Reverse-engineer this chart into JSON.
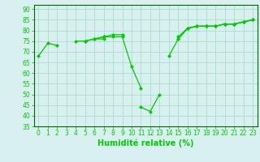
{
  "x": [
    0,
    1,
    2,
    3,
    4,
    5,
    6,
    7,
    8,
    9,
    10,
    11,
    12,
    13,
    14,
    15,
    16,
    17,
    18,
    19,
    20,
    21,
    22,
    23
  ],
  "line1": [
    68,
    74,
    73,
    null,
    75,
    75,
    76,
    76,
    null,
    null,
    null,
    44,
    42,
    50,
    null,
    76,
    81,
    82,
    82,
    82,
    83,
    83,
    84,
    85
  ],
  "line2": [
    null,
    null,
    null,
    null,
    null,
    75,
    76,
    77,
    77,
    77,
    63,
    53,
    null,
    null,
    68,
    76,
    81,
    82,
    82,
    82,
    83,
    83,
    84,
    85
  ],
  "line3": [
    null,
    null,
    null,
    null,
    null,
    null,
    76,
    77,
    78,
    78,
    null,
    null,
    null,
    null,
    null,
    77,
    81,
    82,
    82,
    82,
    83,
    83,
    84,
    85
  ],
  "background_color": "#d8f0f0",
  "grid_color": "#aaddcc",
  "line_color": "#00cc00",
  "ylim": [
    35,
    92
  ],
  "xlim": [
    -0.5,
    23.5
  ],
  "yticks": [
    35,
    40,
    45,
    50,
    55,
    60,
    65,
    70,
    75,
    80,
    85,
    90
  ],
  "xticks": [
    0,
    1,
    2,
    3,
    4,
    5,
    6,
    7,
    8,
    9,
    10,
    11,
    12,
    13,
    14,
    15,
    16,
    17,
    18,
    19,
    20,
    21,
    22,
    23
  ],
  "xlabel": "Humidité relative (%)",
  "tick_fontsize": 5.5,
  "label_fontsize": 7.0,
  "spine_color": "#006600"
}
